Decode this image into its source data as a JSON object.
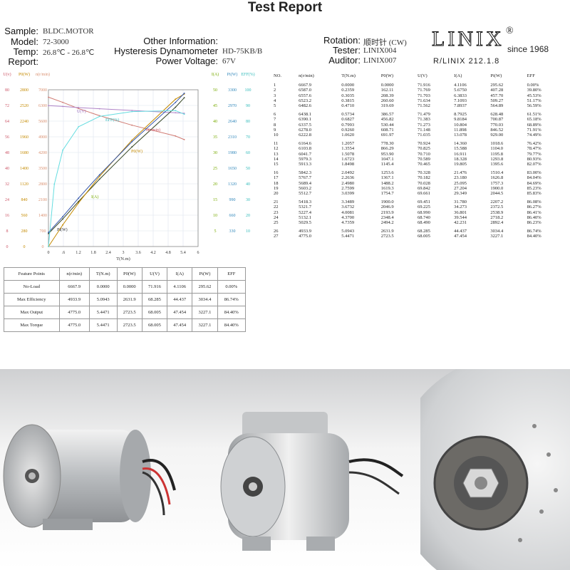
{
  "report": {
    "title": "Test Report",
    "labels": {
      "sample": "Sample:",
      "model": "Model:",
      "temp": "Temp:",
      "report": "Report:",
      "other": "Other Information:",
      "dyn": "Hysteresis Dynamometer",
      "power": "Power Voltage:",
      "rotation": "Rotation:",
      "tester": "Tester:",
      "auditor": "Auditor:"
    },
    "values": {
      "sample": "BLDC.MOTOR",
      "model": "72-3000",
      "temp": "26.8℃ - 26.8℃",
      "dyn": "HD-75KB/B",
      "power": "67V",
      "rotation": "顺时针 (CW)",
      "tester": "LINIX004",
      "auditor": "LINIX007"
    },
    "logo": {
      "text": "LINIX",
      "reg": "®",
      "since": "since 1968",
      "code": "R/LINIX 212.1.8"
    }
  },
  "chart_data": {
    "type": "line",
    "xlabel": "T(N.m)",
    "x_ticks": [
      "0",
      ".6",
      "1.2",
      "1.8",
      "2.4",
      "3",
      "3.6",
      "4.2",
      "4.8",
      "5.4",
      "6"
    ],
    "xlim": [
      0,
      6
    ],
    "left_axes": [
      {
        "label": "U(v)",
        "color": "#cc5566",
        "ticks": [
          "0",
          "8",
          "16",
          "24",
          "32",
          "40",
          "48",
          "56",
          "64",
          "72",
          "80"
        ]
      },
      {
        "label": "P0(W)",
        "color": "#c48a00",
        "ticks": [
          "0",
          "280",
          "560",
          "840",
          "1120",
          "1400",
          "1680",
          "1960",
          "2240",
          "2520",
          "2800"
        ]
      },
      {
        "label": "n(r/min)",
        "color": "#d99070",
        "ticks": [
          "0",
          "700",
          "1400",
          "2100",
          "2800",
          "3500",
          "4200",
          "4900",
          "5600",
          "6300",
          "7000"
        ]
      }
    ],
    "right_axes": [
      {
        "label": "I(A)",
        "color": "#77aa00",
        "ticks": [
          "5",
          "10",
          "15",
          "20",
          "25",
          "30",
          "35",
          "40",
          "45",
          "50"
        ]
      },
      {
        "label": "Pi(W)",
        "color": "#3388bb",
        "ticks": [
          "330",
          "660",
          "990",
          "1320",
          "1650",
          "1980",
          "2310",
          "2640",
          "2970",
          "3300"
        ]
      },
      {
        "label": "EFF(%)",
        "color": "#33bbbb",
        "ticks": [
          "10",
          "20",
          "30",
          "40",
          "50",
          "60",
          "70",
          "80",
          "90",
          "100"
        ]
      }
    ],
    "curve_labels": [
      "U(V)",
      "EFF(%)",
      "n(r/min)",
      "P0(W)",
      "I(A)",
      "Pi(W)"
    ],
    "series": [
      {
        "name": "n(r/min)",
        "color": "#d07a72",
        "x": [
          0,
          0.5734,
          1.2057,
          2.0492,
          3.3489,
          5.0943,
          5.4471
        ],
        "values": [
          6667.9,
          6438.1,
          6164.6,
          5842.3,
          5418.3,
          4933.9,
          4775.0
        ]
      },
      {
        "name": "U(V)",
        "color": "#b084c8",
        "x": [
          0,
          0.5734,
          1.2057,
          2.0492,
          3.3489,
          5.0943,
          5.4471
        ],
        "values": [
          71.916,
          71.479,
          70.924,
          70.328,
          69.451,
          68.285,
          68.005
        ]
      },
      {
        "name": "I(A)",
        "color": "#334422",
        "x": [
          0,
          0.5734,
          1.2057,
          2.0492,
          3.3489,
          5.0943,
          5.4471
        ],
        "values": [
          4.1106,
          8.7925,
          14.36,
          21.476,
          31.78,
          44.437,
          47.454
        ]
      },
      {
        "name": "P0(W)",
        "color": "#c48a00",
        "x": [
          0,
          0.5734,
          1.2057,
          2.0492,
          3.3489,
          5.0943,
          5.4471
        ],
        "values": [
          0,
          386.57,
          778.3,
          1253.6,
          1900.0,
          2631.9,
          2723.5
        ]
      },
      {
        "name": "Pi(W)",
        "color": "#3355aa",
        "x": [
          0,
          0.5734,
          1.2057,
          2.0492,
          3.3489,
          5.0943,
          5.4471
        ],
        "values": [
          295.62,
          628.48,
          1018.6,
          1510.4,
          2207.2,
          3034.4,
          3227.1
        ]
      },
      {
        "name": "EFF(%)",
        "color": "#66dde0",
        "x": [
          0,
          0.2359,
          0.5734,
          1.2057,
          2.0492,
          3.3489,
          5.0943,
          5.4471
        ],
        "values": [
          0,
          39.8,
          61.51,
          76.42,
          83.0,
          86.08,
          86.74,
          84.4
        ]
      }
    ]
  },
  "feature_table": {
    "headers": [
      "Feature Points",
      "n(r/min)",
      "T(N.m)",
      "P0(W)",
      "U(V)",
      "I(A)",
      "Pi(W)",
      "EFF"
    ],
    "rows": [
      [
        "No-Load",
        "6667.9",
        "0.0000",
        "0.0000",
        "71.916",
        "4.1106",
        "295.62",
        "0.00%"
      ],
      [
        "Max Efficiency",
        "4933.9",
        "5.0943",
        "2631.9",
        "68.285",
        "44.437",
        "3034.4",
        "86.74%"
      ],
      [
        "Max Output",
        "4775.0",
        "5.4471",
        "2723.5",
        "68.005",
        "47.454",
        "3227.1",
        "84.40%"
      ],
      [
        "Max Torque",
        "4775.0",
        "5.4471",
        "2723.5",
        "68.005",
        "47.454",
        "3227.1",
        "84.40%"
      ]
    ]
  },
  "data_table": {
    "headers": [
      "NO.",
      "n(r/min)",
      "T(N.m)",
      "P0(W)",
      "U(V)",
      "I(A)",
      "Pi(W)",
      "EFF"
    ],
    "groups": [
      [
        [
          "1",
          "6667.9",
          "0.0000",
          "0.0000",
          "71.916",
          "4.1106",
          "295.62",
          "0.00%"
        ],
        [
          "2",
          "6587.0",
          "0.2359",
          "162.11",
          "71.769",
          "5.6750",
          "407.28",
          "39.80%"
        ],
        [
          "3",
          "6557.6",
          "0.3035",
          "208.39",
          "71.703",
          "6.3833",
          "457.70",
          "45.53%"
        ],
        [
          "4",
          "6523.2",
          "0.3815",
          "260.60",
          "71.634",
          "7.1093",
          "509.27",
          "51.17%"
        ],
        [
          "5",
          "6482.6",
          "0.4710",
          "319.69",
          "71.562",
          "7.8937",
          "564.89",
          "56.59%"
        ]
      ],
      [
        [
          "6",
          "6438.1",
          "0.5734",
          "386.57",
          "71.479",
          "8.7925",
          "628.48",
          "61.51%"
        ],
        [
          "7",
          "6390.1",
          "0.6827",
          "456.82",
          "71.383",
          "9.8184",
          "700.87",
          "65.18%"
        ],
        [
          "8",
          "6337.5",
          "0.7993",
          "530.44",
          "71.273",
          "10.804",
          "770.03",
          "68.89%"
        ],
        [
          "9",
          "6278.0",
          "0.9260",
          "608.71",
          "71.148",
          "11.898",
          "846.52",
          "71.91%"
        ],
        [
          "10",
          "6222.8",
          "1.0620",
          "691.97",
          "71.035",
          "13.078",
          "929.00",
          "74.49%"
        ]
      ],
      [
        [
          "11",
          "6164.6",
          "1.2057",
          "778.30",
          "70.924",
          "14.360",
          "1018.6",
          "76.42%"
        ],
        [
          "12",
          "6103.8",
          "1.3554",
          "866.29",
          "70.825",
          "15.588",
          "1104.0",
          "78.47%"
        ],
        [
          "13",
          "6041.7",
          "1.5078",
          "953.90",
          "70.710",
          "16.911",
          "1195.8",
          "79.77%"
        ],
        [
          "14",
          "5979.3",
          "1.6723",
          "1047.1",
          "70.589",
          "18.328",
          "1293.8",
          "80.93%"
        ],
        [
          "15",
          "5913.3",
          "1.8498",
          "1145.4",
          "70.465",
          "19.805",
          "1395.6",
          "82.07%"
        ]
      ],
      [
        [
          "16",
          "5842.3",
          "2.0492",
          "1253.6",
          "70.328",
          "21.476",
          "1510.4",
          "83.00%"
        ],
        [
          "17",
          "5767.7",
          "2.2636",
          "1367.1",
          "70.182",
          "23.180",
          "1626.8",
          "84.04%"
        ],
        [
          "18",
          "5689.4",
          "2.4980",
          "1488.2",
          "70.028",
          "25.095",
          "1757.3",
          "84.69%"
        ],
        [
          "19",
          "5603.2",
          "2.7599",
          "1619.3",
          "69.842",
          "27.204",
          "1900.0",
          "85.23%"
        ],
        [
          "20",
          "5512.7",
          "3.0399",
          "1754.7",
          "69.661",
          "29.349",
          "2044.5",
          "85.83%"
        ]
      ],
      [
        [
          "21",
          "5418.3",
          "3.3489",
          "1900.0",
          "69.451",
          "31.780",
          "2207.2",
          "86.08%"
        ],
        [
          "22",
          "5321.7",
          "3.6732",
          "2046.9",
          "69.225",
          "34.273",
          "2372.5",
          "86.27%"
        ],
        [
          "23",
          "5227.4",
          "4.0081",
          "2193.9",
          "68.990",
          "36.801",
          "2538.9",
          "86.41%"
        ],
        [
          "24",
          "5132.1",
          "4.3700",
          "2348.4",
          "68.740",
          "39.544",
          "2718.2",
          "86.40%"
        ],
        [
          "25",
          "5029.5",
          "4.7359",
          "2494.2",
          "68.490",
          "42.231",
          "2892.4",
          "86.23%"
        ]
      ],
      [
        [
          "26",
          "4933.9",
          "5.0943",
          "2631.9",
          "68.285",
          "44.437",
          "3034.4",
          "86.74%"
        ],
        [
          "27",
          "4775.0",
          "5.4471",
          "2723.5",
          "68.005",
          "47.454",
          "3227.1",
          "84.40%"
        ]
      ]
    ]
  },
  "photos": [
    {
      "name": "motor-angled-view"
    },
    {
      "name": "motor-front-mount-view"
    },
    {
      "name": "sprocket-closeup"
    }
  ]
}
